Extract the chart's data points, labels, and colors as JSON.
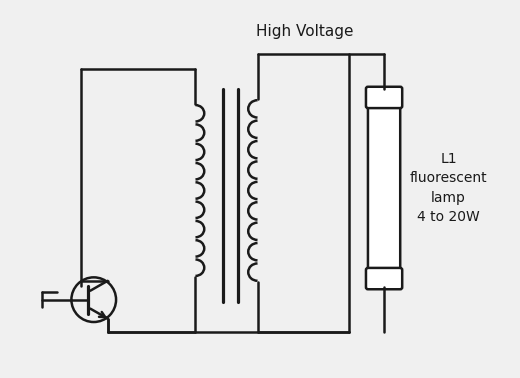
{
  "title": "High Voltage",
  "label_lines": [
    "L1",
    "fluorescent",
    "lamp",
    "4 to 20W"
  ],
  "bg_color": "#f0f0f0",
  "line_color": "#1a1a1a",
  "lw": 1.8,
  "fig_width": 5.2,
  "fig_height": 3.78,
  "dpi": 100
}
